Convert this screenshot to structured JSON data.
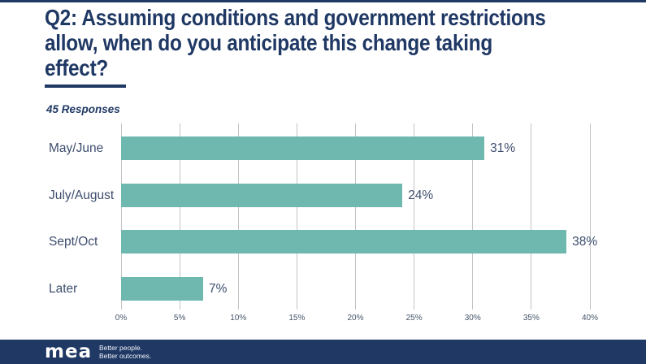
{
  "page": {
    "title_lines": [
      "Q2: Assuming conditions and government restrictions",
      "allow, when do you anticipate this change taking",
      "effect?"
    ],
    "responses_note": "45 Responses"
  },
  "colors": {
    "navy": "#1f3864",
    "bar_teal": "#6eb8b0",
    "gridline": "#c3c3c3",
    "label_text": "#3e4e6e"
  },
  "chart_data": {
    "type": "bar",
    "orientation": "horizontal",
    "title": "Q2: Assuming conditions and government restrictions allow, when do you anticipate this change taking effect?",
    "subtitle": "45 Responses",
    "categories": [
      "May/June",
      "July/August",
      "Sept/Oct",
      "Later"
    ],
    "values": [
      31,
      24,
      38,
      7
    ],
    "value_labels": [
      "31%",
      "24%",
      "38%",
      "7%"
    ],
    "x_axis_ticks": [
      "0%",
      "5%",
      "10%",
      "15%",
      "20%",
      "25%",
      "30%",
      "35%",
      "40%"
    ],
    "xlim": [
      0,
      40
    ],
    "grid": true,
    "legend": "none"
  },
  "footer": {
    "logo_text": "mea",
    "tagline_line1": "Better people.",
    "tagline_line2": "Better outcomes."
  }
}
